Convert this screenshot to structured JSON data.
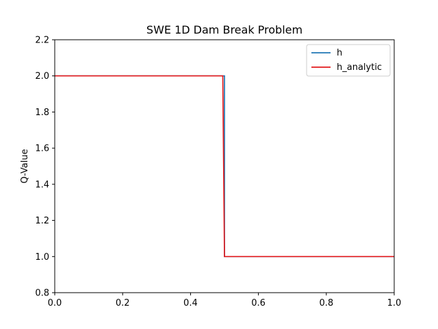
{
  "chart_data": {
    "type": "line",
    "title": "SWE 1D Dam Break Problem",
    "xlabel": "",
    "ylabel": "Q-Value",
    "xlim": [
      0.0,
      1.0
    ],
    "ylim": [
      0.8,
      2.2
    ],
    "x_ticks": [
      "0.0",
      "0.2",
      "0.4",
      "0.6",
      "0.8",
      "1.0"
    ],
    "y_ticks": [
      "0.8",
      "1.0",
      "1.2",
      "1.4",
      "1.6",
      "1.8",
      "2.0",
      "2.2"
    ],
    "legend_placement": "top-right",
    "grid": false,
    "series": [
      {
        "name": "h",
        "color": "#1f77b4",
        "x": [
          0.0,
          0.5,
          0.5,
          1.0
        ],
        "y": [
          2.0,
          2.0,
          1.0,
          1.0
        ]
      },
      {
        "name": "h_analytic",
        "color": "#e31a1c",
        "x": [
          0.0,
          0.495,
          0.5,
          1.0
        ],
        "y": [
          2.0,
          2.0,
          1.0,
          1.0
        ]
      }
    ]
  }
}
